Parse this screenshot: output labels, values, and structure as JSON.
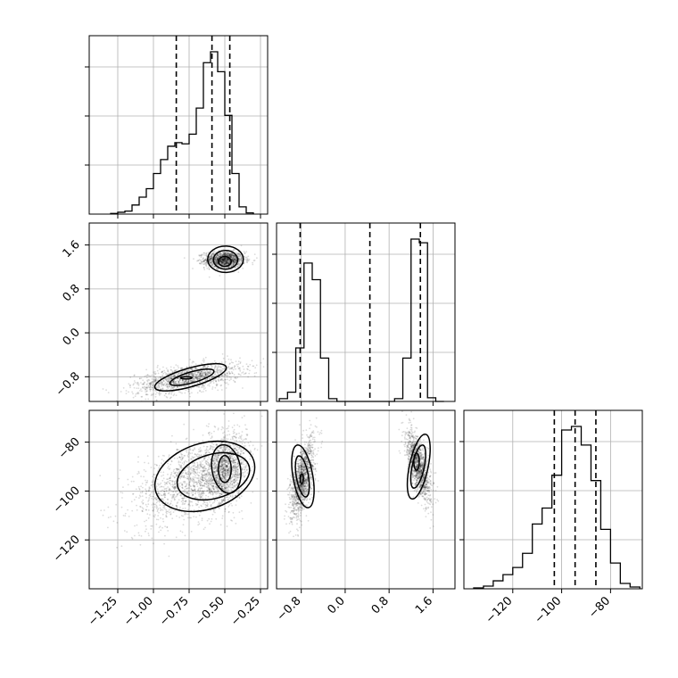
{
  "chart_data": {
    "type": "corner",
    "parameters": [
      {
        "id": "p1",
        "range": [
          -1.45,
          -0.2
        ],
        "ticks": [
          -1.25,
          -1.0,
          -0.75,
          -0.5,
          -0.25
        ],
        "tick_labels": [
          "−1.25",
          "−1.00",
          "−0.75",
          "−0.50",
          "−0.25"
        ],
        "quantiles": [
          -0.84,
          -0.59,
          -0.465
        ],
        "histogram": {
          "edges": [
            -1.3,
            -1.25,
            -1.2,
            -1.15,
            -1.1,
            -1.05,
            -1.0,
            -0.95,
            -0.9,
            -0.85,
            -0.8,
            -0.75,
            -0.7,
            -0.65,
            -0.6,
            -0.55,
            -0.5,
            -0.45,
            -0.4,
            -0.35,
            -0.3
          ],
          "counts": [
            1,
            3,
            5,
            15,
            28,
            42,
            67,
            90,
            112,
            118,
            116,
            132,
            175,
            250,
            268,
            235,
            163,
            67,
            12,
            2
          ]
        }
      },
      {
        "id": "p2",
        "range": [
          -1.25,
          2.0
        ],
        "ticks": [
          -0.8,
          0.0,
          0.8,
          1.6
        ],
        "tick_labels": [
          "−0.8",
          "0.0",
          "0.8",
          "1.6"
        ],
        "quantiles": [
          -0.82,
          0.45,
          1.37
        ],
        "histogram": {
          "edges": [
            -1.2,
            -1.05,
            -0.9,
            -0.75,
            -0.6,
            -0.45,
            -0.3,
            -0.15,
            0.0,
            0.15,
            0.3,
            0.45,
            0.6,
            0.75,
            0.9,
            1.05,
            1.2,
            1.35,
            1.5,
            1.65,
            1.8
          ],
          "counts": [
            3,
            10,
            58,
            150,
            132,
            47,
            3,
            0,
            0,
            0,
            0,
            0,
            0,
            0,
            3,
            47,
            176,
            172,
            4,
            0
          ]
        }
      },
      {
        "id": "p3",
        "range": [
          -140,
          -67
        ],
        "ticks": [
          -120,
          -100,
          -80
        ],
        "tick_labels": [
          "−120",
          "−100",
          "−80"
        ],
        "quantiles": [
          -103,
          -94.5,
          -86
        ],
        "histogram": {
          "edges": [
            -136,
            -132,
            -128,
            -124,
            -120,
            -116,
            -112,
            -108,
            -104,
            -100,
            -96,
            -92,
            -88,
            -84,
            -80,
            -76,
            -72,
            -68
          ],
          "counts": [
            1,
            3,
            9,
            16,
            24,
            40,
            73,
            91,
            128,
            179,
            183,
            162,
            122,
            67,
            29,
            6,
            2
          ]
        }
      }
    ],
    "pairs": [
      {
        "x": "p1",
        "y": "p2",
        "modes": [
          {
            "cx": -0.5,
            "cy": 1.33,
            "sx": 0.07,
            "sy": 0.075,
            "rho": 0.0,
            "weight": 0.5
          },
          {
            "cx": -0.76,
            "cy": -0.83,
            "sx": 0.185,
            "sy": 0.14,
            "rho": 0.55,
            "weight": 0.5
          }
        ],
        "contours": [
          {
            "cx": -0.495,
            "cy": 1.34,
            "rx": 0.125,
            "ry": 0.24,
            "angle": 0
          },
          {
            "cx": -0.495,
            "cy": 1.33,
            "rx": 0.085,
            "ry": 0.17,
            "angle": 0
          },
          {
            "cx": -0.5,
            "cy": 1.3,
            "rx": 0.045,
            "ry": 0.09,
            "angle": 0
          },
          {
            "cx": -0.74,
            "cy": -0.81,
            "rx": 0.26,
            "ry": 0.17,
            "angle": 16
          },
          {
            "cx": -0.73,
            "cy": -0.81,
            "rx": 0.16,
            "ry": 0.1,
            "angle": 16
          },
          {
            "cx": -0.77,
            "cy": -0.82,
            "rx": 0.04,
            "ry": 0.02,
            "angle": 0
          }
        ]
      },
      {
        "x": "p1",
        "y": "p3",
        "modes": [
          {
            "cx": -0.5,
            "cy": -92,
            "sx": 0.075,
            "sy": 7.0,
            "rho": 0.3,
            "weight": 0.5
          },
          {
            "cx": -0.76,
            "cy": -96,
            "sx": 0.19,
            "sy": 9.0,
            "rho": 0.5,
            "weight": 0.5
          }
        ],
        "contours": [
          {
            "cx": -0.64,
            "cy": -94,
            "rx": 0.36,
            "ry": 13.5,
            "angle": 18
          },
          {
            "cx": -0.58,
            "cy": -94,
            "rx": 0.26,
            "ry": 9.0,
            "angle": 16
          },
          {
            "cx": -0.49,
            "cy": -91,
            "rx": 0.1,
            "ry": 10.0,
            "angle": 10
          },
          {
            "cx": -0.5,
            "cy": -91,
            "rx": 0.045,
            "ry": 5.5,
            "angle": 0
          }
        ]
      },
      {
        "x": "p2",
        "y": "p3",
        "modes": [
          {
            "cx": -0.78,
            "cy": -95,
            "sx": 0.11,
            "sy": 8.0,
            "rho": 0.6,
            "weight": 0.5
          },
          {
            "cx": 1.34,
            "cy": -90,
            "sx": 0.11,
            "sy": 7.0,
            "rho": -0.65,
            "weight": 0.5
          }
        ],
        "contours": [
          {
            "cx": -0.77,
            "cy": -94,
            "rx": 0.18,
            "ry": 13.0,
            "angle": 10
          },
          {
            "cx": -0.78,
            "cy": -94,
            "rx": 0.11,
            "ry": 8.5,
            "angle": 10
          },
          {
            "cx": -0.79,
            "cy": -95,
            "rx": 0.03,
            "ry": 2.0,
            "angle": 0
          },
          {
            "cx": 1.34,
            "cy": -90,
            "rx": 0.17,
            "ry": 13.5,
            "angle": -12
          },
          {
            "cx": 1.33,
            "cy": -90,
            "rx": 0.11,
            "ry": 9.0,
            "angle": -12
          },
          {
            "cx": 1.3,
            "cy": -88,
            "rx": 0.05,
            "ry": 3.5,
            "angle": 0
          }
        ]
      }
    ],
    "grid": true
  }
}
